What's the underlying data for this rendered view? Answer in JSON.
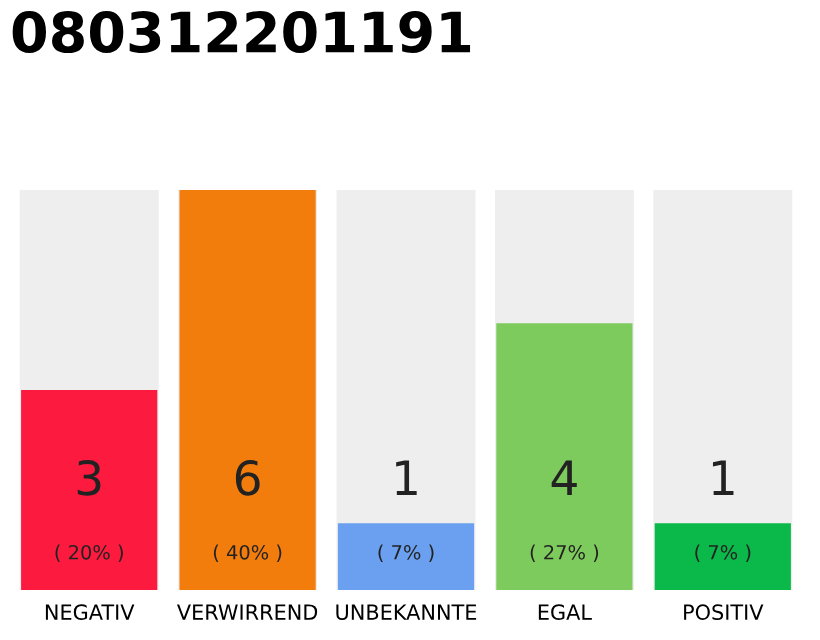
{
  "chart_data": {
    "type": "bar",
    "title": "080312201191",
    "categories": [
      "NEGATIV",
      "VERWIRREND",
      "UNBEKANNTE",
      "EGAL",
      "POSITIV"
    ],
    "values": [
      3,
      6,
      1,
      4,
      1
    ],
    "colors": [
      "#fc1a3e",
      "#f27d0c",
      "#6aa0ef",
      "#7ecb5d",
      "#0bb84a"
    ],
    "ylim": [
      0,
      6
    ],
    "data_labels": true,
    "annotations": [
      "( 20% )",
      "( 40% )",
      "( 7% )",
      "( 27% )",
      "( 7% )"
    ],
    "grid": false,
    "legend": false
  }
}
